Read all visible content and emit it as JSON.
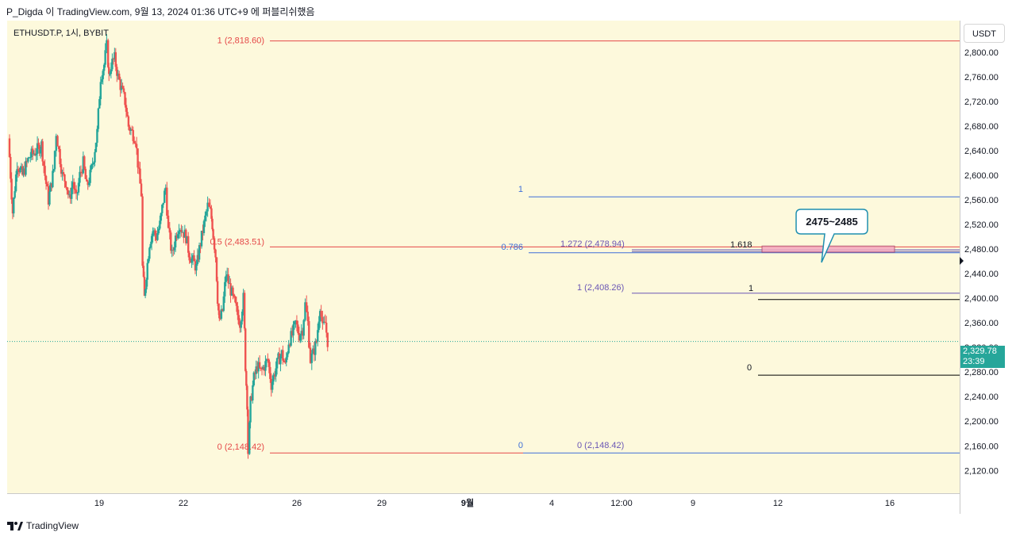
{
  "header": {
    "attribution": "P_Digda 이 TradingView.com, 9월 13, 2024 01:36 UTC+9 에 퍼블리쉬했음"
  },
  "symbol": {
    "label": "ETHUSDT.P, 1시, BYBIT",
    "currency": "USDT"
  },
  "price_tag": {
    "price": "2,329.78",
    "countdown": "23:39"
  },
  "footer": {
    "brand": "TradingView"
  },
  "colors": {
    "background": "#fdf9dc",
    "up": "#26a69a",
    "down": "#ef5350",
    "fib_red": "#e54848",
    "fib_blue": "#3f6fd8",
    "fib_purple": "#6b57b5",
    "fib_black": "#000000",
    "zone_fill": "#f4aac0",
    "callout_border": "#1f8fb0"
  },
  "chart_data": {
    "type": "candlestick",
    "title": "ETHUSDT.P, 1시, BYBIT",
    "ylabel": "USDT",
    "ylim": [
      2100,
      2850
    ],
    "y_ticks": [
      "2,800.00",
      "2,760.00",
      "2,720.00",
      "2,680.00",
      "2,640.00",
      "2,600.00",
      "2,560.00",
      "2,520.00",
      "2,480.00",
      "2,440.00",
      "2,400.00",
      "2,360.00",
      "2,320.00",
      "2,280.00",
      "2,240.00",
      "2,200.00",
      "2,160.00",
      "2,120.00"
    ],
    "x_ticks": [
      "19",
      "22",
      "26",
      "29",
      "9월",
      "4",
      "12:00",
      "9",
      "12",
      "16"
    ],
    "last_price": 2329.78,
    "price_path": [
      [
        0,
        2660
      ],
      [
        1.2,
        2540
      ],
      [
        2.5,
        2620
      ],
      [
        4,
        2600
      ],
      [
        6,
        2630
      ],
      [
        8,
        2640
      ],
      [
        9.5,
        2650
      ],
      [
        10.5,
        2600
      ],
      [
        11.5,
        2560
      ],
      [
        13,
        2610
      ],
      [
        13.8,
        2670
      ],
      [
        14.5,
        2640
      ],
      [
        15.5,
        2600
      ],
      [
        16.5,
        2590
      ],
      [
        17.5,
        2560
      ],
      [
        18.5,
        2590
      ],
      [
        19.5,
        2560
      ],
      [
        20.5,
        2600
      ],
      [
        21.5,
        2620
      ],
      [
        22.5,
        2580
      ],
      [
        23.5,
        2600
      ],
      [
        24.5,
        2630
      ],
      [
        25.5,
        2670
      ],
      [
        26.5,
        2760
      ],
      [
        27.5,
        2780
      ],
      [
        28.3,
        2810
      ],
      [
        28.8,
        2760
      ],
      [
        29.5,
        2780
      ],
      [
        30.5,
        2790
      ],
      [
        31.5,
        2760
      ],
      [
        32.5,
        2740
      ],
      [
        33.5,
        2720
      ],
      [
        34.5,
        2680
      ],
      [
        35.5,
        2670
      ],
      [
        36.5,
        2660
      ],
      [
        37.5,
        2600
      ],
      [
        38.2,
        2570
      ],
      [
        38.5,
        2450
      ],
      [
        39,
        2400
      ],
      [
        39.6,
        2440
      ],
      [
        40.5,
        2490
      ],
      [
        41.5,
        2510
      ],
      [
        42.5,
        2500
      ],
      [
        43.5,
        2520
      ],
      [
        44.5,
        2560
      ],
      [
        45.2,
        2580
      ],
      [
        46,
        2510
      ],
      [
        47,
        2470
      ],
      [
        48,
        2500
      ],
      [
        49,
        2520
      ],
      [
        50,
        2510
      ],
      [
        51,
        2500
      ],
      [
        52,
        2470
      ],
      [
        53,
        2460
      ],
      [
        54,
        2450
      ],
      [
        54.5,
        2470
      ],
      [
        55.5,
        2500
      ],
      [
        56.5,
        2530
      ],
      [
        57.3,
        2550
      ],
      [
        58,
        2540
      ],
      [
        58.5,
        2520
      ],
      [
        59.5,
        2470
      ],
      [
        60,
        2400
      ],
      [
        60.5,
        2360
      ],
      [
        61.5,
        2380
      ],
      [
        62.5,
        2440
      ],
      [
        63.5,
        2420
      ],
      [
        64.5,
        2400
      ],
      [
        65.5,
        2380
      ],
      [
        66.5,
        2360
      ],
      [
        67.5,
        2400
      ],
      [
        68,
        2290
      ],
      [
        68.5,
        2230
      ],
      [
        68.9,
        2150
      ],
      [
        69.5,
        2230
      ],
      [
        70.5,
        2270
      ],
      [
        71.5,
        2290
      ],
      [
        72.5,
        2280
      ],
      [
        73.5,
        2290
      ],
      [
        74.5,
        2300
      ],
      [
        75.5,
        2260
      ],
      [
        76.5,
        2280
      ],
      [
        77.5,
        2300
      ],
      [
        78.5,
        2310
      ],
      [
        79.5,
        2290
      ],
      [
        80.5,
        2330
      ],
      [
        81.5,
        2340
      ],
      [
        82.5,
        2360
      ],
      [
        83.5,
        2340
      ],
      [
        84.5,
        2350
      ],
      [
        85.3,
        2390
      ],
      [
        86,
        2360
      ],
      [
        86.8,
        2300
      ],
      [
        87.5,
        2310
      ],
      [
        88.5,
        2330
      ],
      [
        89.5,
        2390
      ],
      [
        90.3,
        2350
      ],
      [
        91,
        2360
      ],
      [
        91.7,
        2330
      ]
    ],
    "fib_retracement_red": {
      "level_1_label": "1 (2,818.60)",
      "level_1": 2818.6,
      "level_05_label": "0.5 (2,483.51)",
      "level_05": 2483.51,
      "level_0_label": "0 (2,148.42)",
      "level_0": 2148.42
    },
    "fib_blue": {
      "top_label": "1",
      "top": 2565,
      "mid_label": "0.786",
      "mid": 2474,
      "bottom_label": "0",
      "bottom": 2148.42
    },
    "fib_extension_purple": {
      "ext_label": "1.272 (2,478.94)",
      "ext": 2478.94,
      "top_label": "1 (2,408.26)",
      "top": 2408.26,
      "bottom_label": "0 (2,148.42)",
      "bottom": 2148.42,
      "right_top_label": "1",
      "right_top": 2408.26,
      "ext2_label": "1.618",
      "ext2": 2476
    },
    "fib_black": {
      "top_label": "1",
      "top": 2398,
      "bottom_label": "0",
      "bottom": 2275
    },
    "zone": {
      "low": 2475,
      "high": 2485
    },
    "annotation": "2475~2485"
  }
}
